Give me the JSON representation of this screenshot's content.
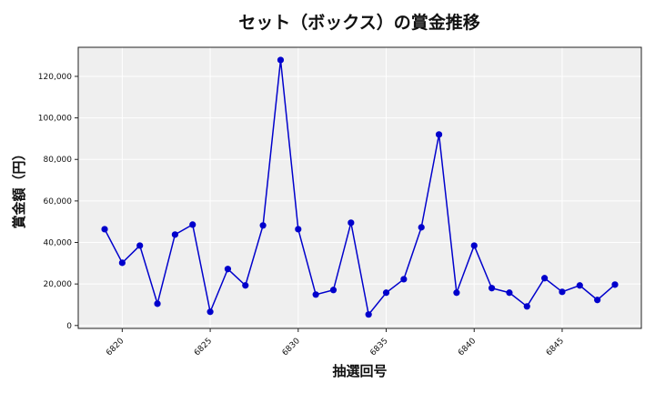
{
  "chart_data": {
    "type": "line",
    "title": "セット（ボックス）の賞金推移",
    "xlabel": "抽選回号",
    "ylabel": "賞金額（円）",
    "x": [
      6819,
      6820,
      6821,
      6822,
      6823,
      6824,
      6825,
      6826,
      6827,
      6828,
      6829,
      6830,
      6831,
      6832,
      6833,
      6834,
      6835,
      6836,
      6837,
      6838,
      6839,
      6840,
      6841,
      6842,
      6843,
      6844,
      6845,
      6846,
      6847,
      6848
    ],
    "series": [
      {
        "name": "セット（ボックス）",
        "color": "#0000cc",
        "marker": "circle",
        "values": [
          46400,
          30200,
          38500,
          10500,
          43800,
          48600,
          6600,
          27200,
          19300,
          48200,
          127900,
          46400,
          14900,
          17100,
          49500,
          5300,
          15800,
          22300,
          47300,
          92000,
          15800,
          38500,
          18000,
          15800,
          9200,
          22800,
          16200,
          19300,
          12300,
          19700
        ]
      }
    ],
    "xticks": [
      6820,
      6825,
      6830,
      6835,
      6840,
      6845
    ],
    "xtick_labels": [
      "6820",
      "6825",
      "6830",
      "6835",
      "6840",
      "6845"
    ],
    "yticks": [
      0,
      20000,
      40000,
      60000,
      80000,
      100000,
      120000
    ],
    "ytick_labels": [
      "0",
      "20,000",
      "40,000",
      "60,000",
      "80,000",
      "100,000",
      "120,000"
    ],
    "xlim": [
      6817.5,
      6849.5
    ],
    "ylim": [
      -1400,
      134000
    ],
    "grid": true,
    "legend": null,
    "plot_background": "#efefef",
    "grid_color": "#ffffff"
  }
}
